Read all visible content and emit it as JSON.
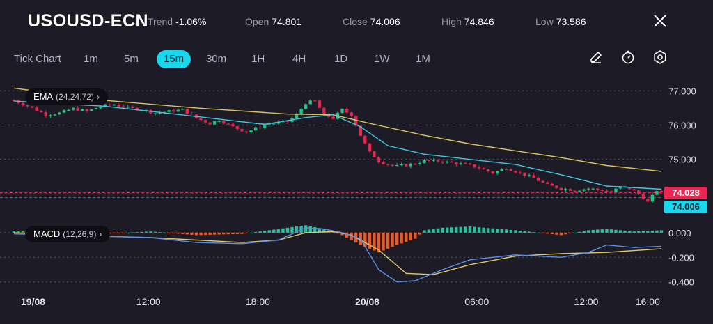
{
  "header": {
    "symbol": "USOUSD-ECN",
    "trend_label": "Trend",
    "trend_value": "-1.06%",
    "open_label": "Open",
    "open_value": "74.801",
    "close_label": "Close",
    "close_value": "74.006",
    "high_label": "High",
    "high_value": "74.846",
    "low_label": "Low",
    "low_value": "73.586",
    "close_icon": "close-icon"
  },
  "timeframes": [
    "Tick Chart",
    "1m",
    "5m",
    "15m",
    "30m",
    "1H",
    "4H",
    "1D",
    "1W",
    "1M"
  ],
  "active_timeframe": "15m",
  "tools": [
    "pencil-icon",
    "timer-icon",
    "settings-icon"
  ],
  "indicators": {
    "ema_label": "EMA",
    "ema_params": "(24,24,72)",
    "macd_label": "MACD",
    "macd_params": "(12,26,9)"
  },
  "price_tags": {
    "upper": "74.028",
    "lower": "74.006",
    "upper_color": "#e8264f",
    "lower_color": "#17d8ee"
  },
  "colors": {
    "up": "#26c281",
    "down": "#e8264f",
    "ema_fast": "#3fc6e0",
    "ema_slow": "#d9c35e",
    "macd_line": "#5b8fe8",
    "signal_line": "#e0c860",
    "hist_pos": "#26c2a0",
    "hist_neg": "#e85a2a"
  },
  "chart_data": [
    {
      "type": "candlestick",
      "x_ticks": [
        "19/08",
        "12:00",
        "18:00",
        "20/08",
        "06:00",
        "12:00",
        "16:00"
      ],
      "y_ticks": [
        77.0,
        76.0,
        75.0,
        74.0
      ],
      "y_tick_labels": [
        "77.000",
        "76.000",
        "75.000"
      ],
      "ylim": [
        73.55,
        77.25
      ],
      "grid": true,
      "current_price": 74.006,
      "bid_price": 74.028,
      "price_path": [
        [
          0,
          76.72
        ],
        [
          4,
          76.5
        ],
        [
          7,
          76.3
        ],
        [
          10,
          76.35
        ],
        [
          13,
          76.48
        ],
        [
          16,
          76.4
        ],
        [
          19,
          76.55
        ],
        [
          22,
          76.6
        ],
        [
          25,
          76.5
        ],
        [
          28,
          76.45
        ],
        [
          31,
          76.35
        ],
        [
          34,
          76.4
        ],
        [
          37,
          76.45
        ],
        [
          40,
          76.2
        ],
        [
          43,
          76.05
        ],
        [
          45,
          76.15
        ],
        [
          48,
          75.95
        ],
        [
          51,
          75.8
        ],
        [
          53,
          75.9
        ],
        [
          55,
          76.0
        ],
        [
          57,
          76.05
        ],
        [
          60,
          76.1
        ],
        [
          62,
          76.3
        ],
        [
          64,
          76.65
        ],
        [
          66,
          76.7
        ],
        [
          68,
          76.3
        ],
        [
          70,
          76.2
        ],
        [
          72,
          76.45
        ],
        [
          74,
          76.3
        ],
        [
          76,
          75.7
        ],
        [
          78,
          75.2
        ],
        [
          80,
          74.95
        ],
        [
          82,
          74.85
        ],
        [
          84,
          74.8
        ],
        [
          87,
          74.85
        ],
        [
          90,
          74.95
        ],
        [
          93,
          74.95
        ],
        [
          96,
          74.9
        ],
        [
          99,
          74.85
        ],
        [
          102,
          74.75
        ],
        [
          105,
          74.6
        ],
        [
          108,
          74.75
        ],
        [
          111,
          74.6
        ],
        [
          114,
          74.45
        ],
        [
          117,
          74.25
        ],
        [
          120,
          74.15
        ],
        [
          123,
          74.1
        ],
        [
          126,
          74.15
        ],
        [
          129,
          74.1
        ],
        [
          131,
          74.05
        ],
        [
          133,
          74.2
        ],
        [
          135,
          74.15
        ],
        [
          137,
          74.0
        ],
        [
          139,
          73.75
        ],
        [
          141,
          74.1
        ],
        [
          142,
          74.01
        ]
      ],
      "ema_fast": [
        [
          0,
          76.7
        ],
        [
          20,
          76.55
        ],
        [
          40,
          76.25
        ],
        [
          55,
          76.02
        ],
        [
          64,
          76.22
        ],
        [
          70,
          76.3
        ],
        [
          76,
          75.95
        ],
        [
          82,
          75.4
        ],
        [
          90,
          75.15
        ],
        [
          100,
          75.0
        ],
        [
          110,
          74.85
        ],
        [
          120,
          74.55
        ],
        [
          130,
          74.22
        ],
        [
          142,
          74.13
        ]
      ],
      "ema_slow": [
        [
          0,
          77.08
        ],
        [
          20,
          76.72
        ],
        [
          40,
          76.5
        ],
        [
          60,
          76.32
        ],
        [
          70,
          76.3
        ],
        [
          78,
          76.05
        ],
        [
          90,
          75.7
        ],
        [
          100,
          75.45
        ],
        [
          110,
          75.25
        ],
        [
          120,
          75.05
        ],
        [
          130,
          74.82
        ],
        [
          142,
          74.65
        ]
      ]
    },
    {
      "type": "macd",
      "y_ticks": [
        0.0,
        -0.2,
        -0.4
      ],
      "y_tick_labels": [
        "0.000",
        "-0.200",
        "-0.400"
      ],
      "ylim": [
        -0.43,
        0.09
      ],
      "macd_line": [
        [
          0,
          -0.01
        ],
        [
          10,
          -0.02
        ],
        [
          20,
          -0.03
        ],
        [
          30,
          -0.04
        ],
        [
          40,
          -0.08
        ],
        [
          50,
          -0.09
        ],
        [
          58,
          -0.06
        ],
        [
          64,
          0.04
        ],
        [
          68,
          0.03
        ],
        [
          72,
          0.0
        ],
        [
          76,
          -0.05
        ],
        [
          80,
          -0.3
        ],
        [
          84,
          -0.4
        ],
        [
          88,
          -0.39
        ],
        [
          94,
          -0.3
        ],
        [
          100,
          -0.22
        ],
        [
          110,
          -0.18
        ],
        [
          120,
          -0.2
        ],
        [
          126,
          -0.16
        ],
        [
          130,
          -0.1
        ],
        [
          136,
          -0.12
        ],
        [
          142,
          -0.11
        ]
      ],
      "signal_line": [
        [
          0,
          -0.0
        ],
        [
          10,
          -0.02
        ],
        [
          20,
          -0.03
        ],
        [
          30,
          -0.04
        ],
        [
          40,
          -0.06
        ],
        [
          50,
          -0.08
        ],
        [
          58,
          -0.06
        ],
        [
          64,
          -0.0
        ],
        [
          70,
          0.01
        ],
        [
          74,
          -0.02
        ],
        [
          80,
          -0.14
        ],
        [
          86,
          -0.33
        ],
        [
          92,
          -0.34
        ],
        [
          100,
          -0.26
        ],
        [
          110,
          -0.19
        ],
        [
          120,
          -0.17
        ],
        [
          130,
          -0.16
        ],
        [
          142,
          -0.13
        ]
      ],
      "histogram": [
        [
          0,
          0.01
        ],
        [
          10,
          0.01
        ],
        [
          20,
          -0.01
        ],
        [
          30,
          0.01
        ],
        [
          40,
          -0.02
        ],
        [
          50,
          -0.01
        ],
        [
          56,
          0.02
        ],
        [
          60,
          0.04
        ],
        [
          64,
          0.06
        ],
        [
          68,
          0.03
        ],
        [
          72,
          -0.02
        ],
        [
          76,
          -0.1
        ],
        [
          80,
          -0.16
        ],
        [
          84,
          -0.1
        ],
        [
          88,
          -0.05
        ],
        [
          90,
          0.02
        ],
        [
          94,
          0.04
        ],
        [
          100,
          0.05
        ],
        [
          110,
          0.02
        ],
        [
          120,
          -0.02
        ],
        [
          126,
          0.02
        ],
        [
          130,
          0.03
        ],
        [
          136,
          0.01
        ],
        [
          142,
          0.02
        ]
      ]
    }
  ]
}
